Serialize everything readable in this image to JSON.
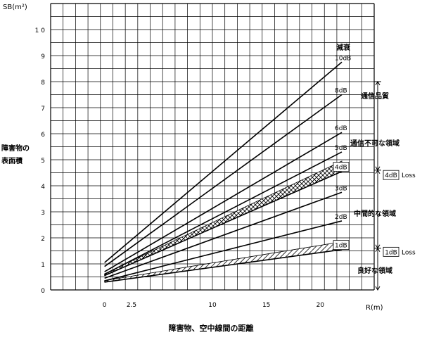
{
  "chart_data": {
    "type": "line",
    "title": "障害物、空中線間の距離",
    "ylabel_unit": "SB(m²)",
    "ylabel_lines": [
      "障害物の",
      "表面積"
    ],
    "xlabel": "R(m)",
    "xlim": [
      -5,
      25
    ],
    "ylim": [
      0,
      11
    ],
    "x_ticks": [
      0,
      2.5,
      10,
      15,
      20
    ],
    "x_tick_labels": [
      "0",
      "2.5",
      "10",
      "15",
      "20"
    ],
    "y_ticks": [
      0,
      1,
      2,
      3,
      4,
      5,
      6,
      7,
      8,
      9,
      10
    ],
    "y_tick_labels": [
      "0",
      "1",
      "2",
      "3",
      "4",
      "5",
      "6",
      "7",
      "8",
      "9",
      "1 0"
    ],
    "grid": true,
    "legend_header": "減衰",
    "series": [
      {
        "name": "10dB",
        "x": [
          0,
          22
        ],
        "y": [
          1.05,
          8.75
        ],
        "boxed": false
      },
      {
        "name": "8dB",
        "x": [
          0,
          22
        ],
        "y": [
          0.9,
          7.5
        ],
        "boxed": false
      },
      {
        "name": "6dB",
        "x": [
          0,
          22
        ],
        "y": [
          0.7,
          6.05
        ],
        "boxed": false
      },
      {
        "name": "5dB",
        "x": [
          0,
          22
        ],
        "y": [
          0.6,
          5.3
        ],
        "boxed": false
      },
      {
        "name": "4dB",
        "x": [
          0,
          22
        ],
        "y": [
          0.55,
          4.55
        ],
        "boxed": true
      },
      {
        "name": "3dB",
        "x": [
          0,
          22
        ],
        "y": [
          0.45,
          3.75
        ],
        "boxed": false
      },
      {
        "name": "2dB",
        "x": [
          0,
          22
        ],
        "y": [
          0.35,
          2.65
        ],
        "boxed": false
      },
      {
        "name": "1dB",
        "x": [
          0,
          22
        ],
        "y": [
          0.3,
          1.55
        ],
        "boxed": true
      }
    ],
    "bands": [
      {
        "label": "4dB Loss",
        "pattern": "crosshatch",
        "lower": [
          0,
          0.55,
          22,
          4.55
        ],
        "upper": [
          0,
          0.62,
          22,
          4.95
        ]
      },
      {
        "label": "1dB Loss",
        "pattern": "diagonal",
        "lower": [
          0,
          0.3,
          22,
          1.55
        ],
        "upper": [
          0,
          0.36,
          22,
          1.85
        ]
      }
    ],
    "regions": [
      {
        "label_lines": [
          "通信品質",
          "通信不可な領域"
        ],
        "y_range": [
          4.6,
          8.0
        ]
      },
      {
        "label_lines": [
          "中間的な領域"
        ],
        "y_range": [
          1.6,
          4.6
        ]
      },
      {
        "label_lines": [
          "良好な領域"
        ],
        "y_range": [
          0,
          1.6
        ]
      }
    ],
    "side_labels": [
      {
        "box": "4dB",
        "text": "Loss",
        "y": 4.4
      },
      {
        "box": "1dB",
        "text": "Loss",
        "y": 1.45
      }
    ]
  }
}
